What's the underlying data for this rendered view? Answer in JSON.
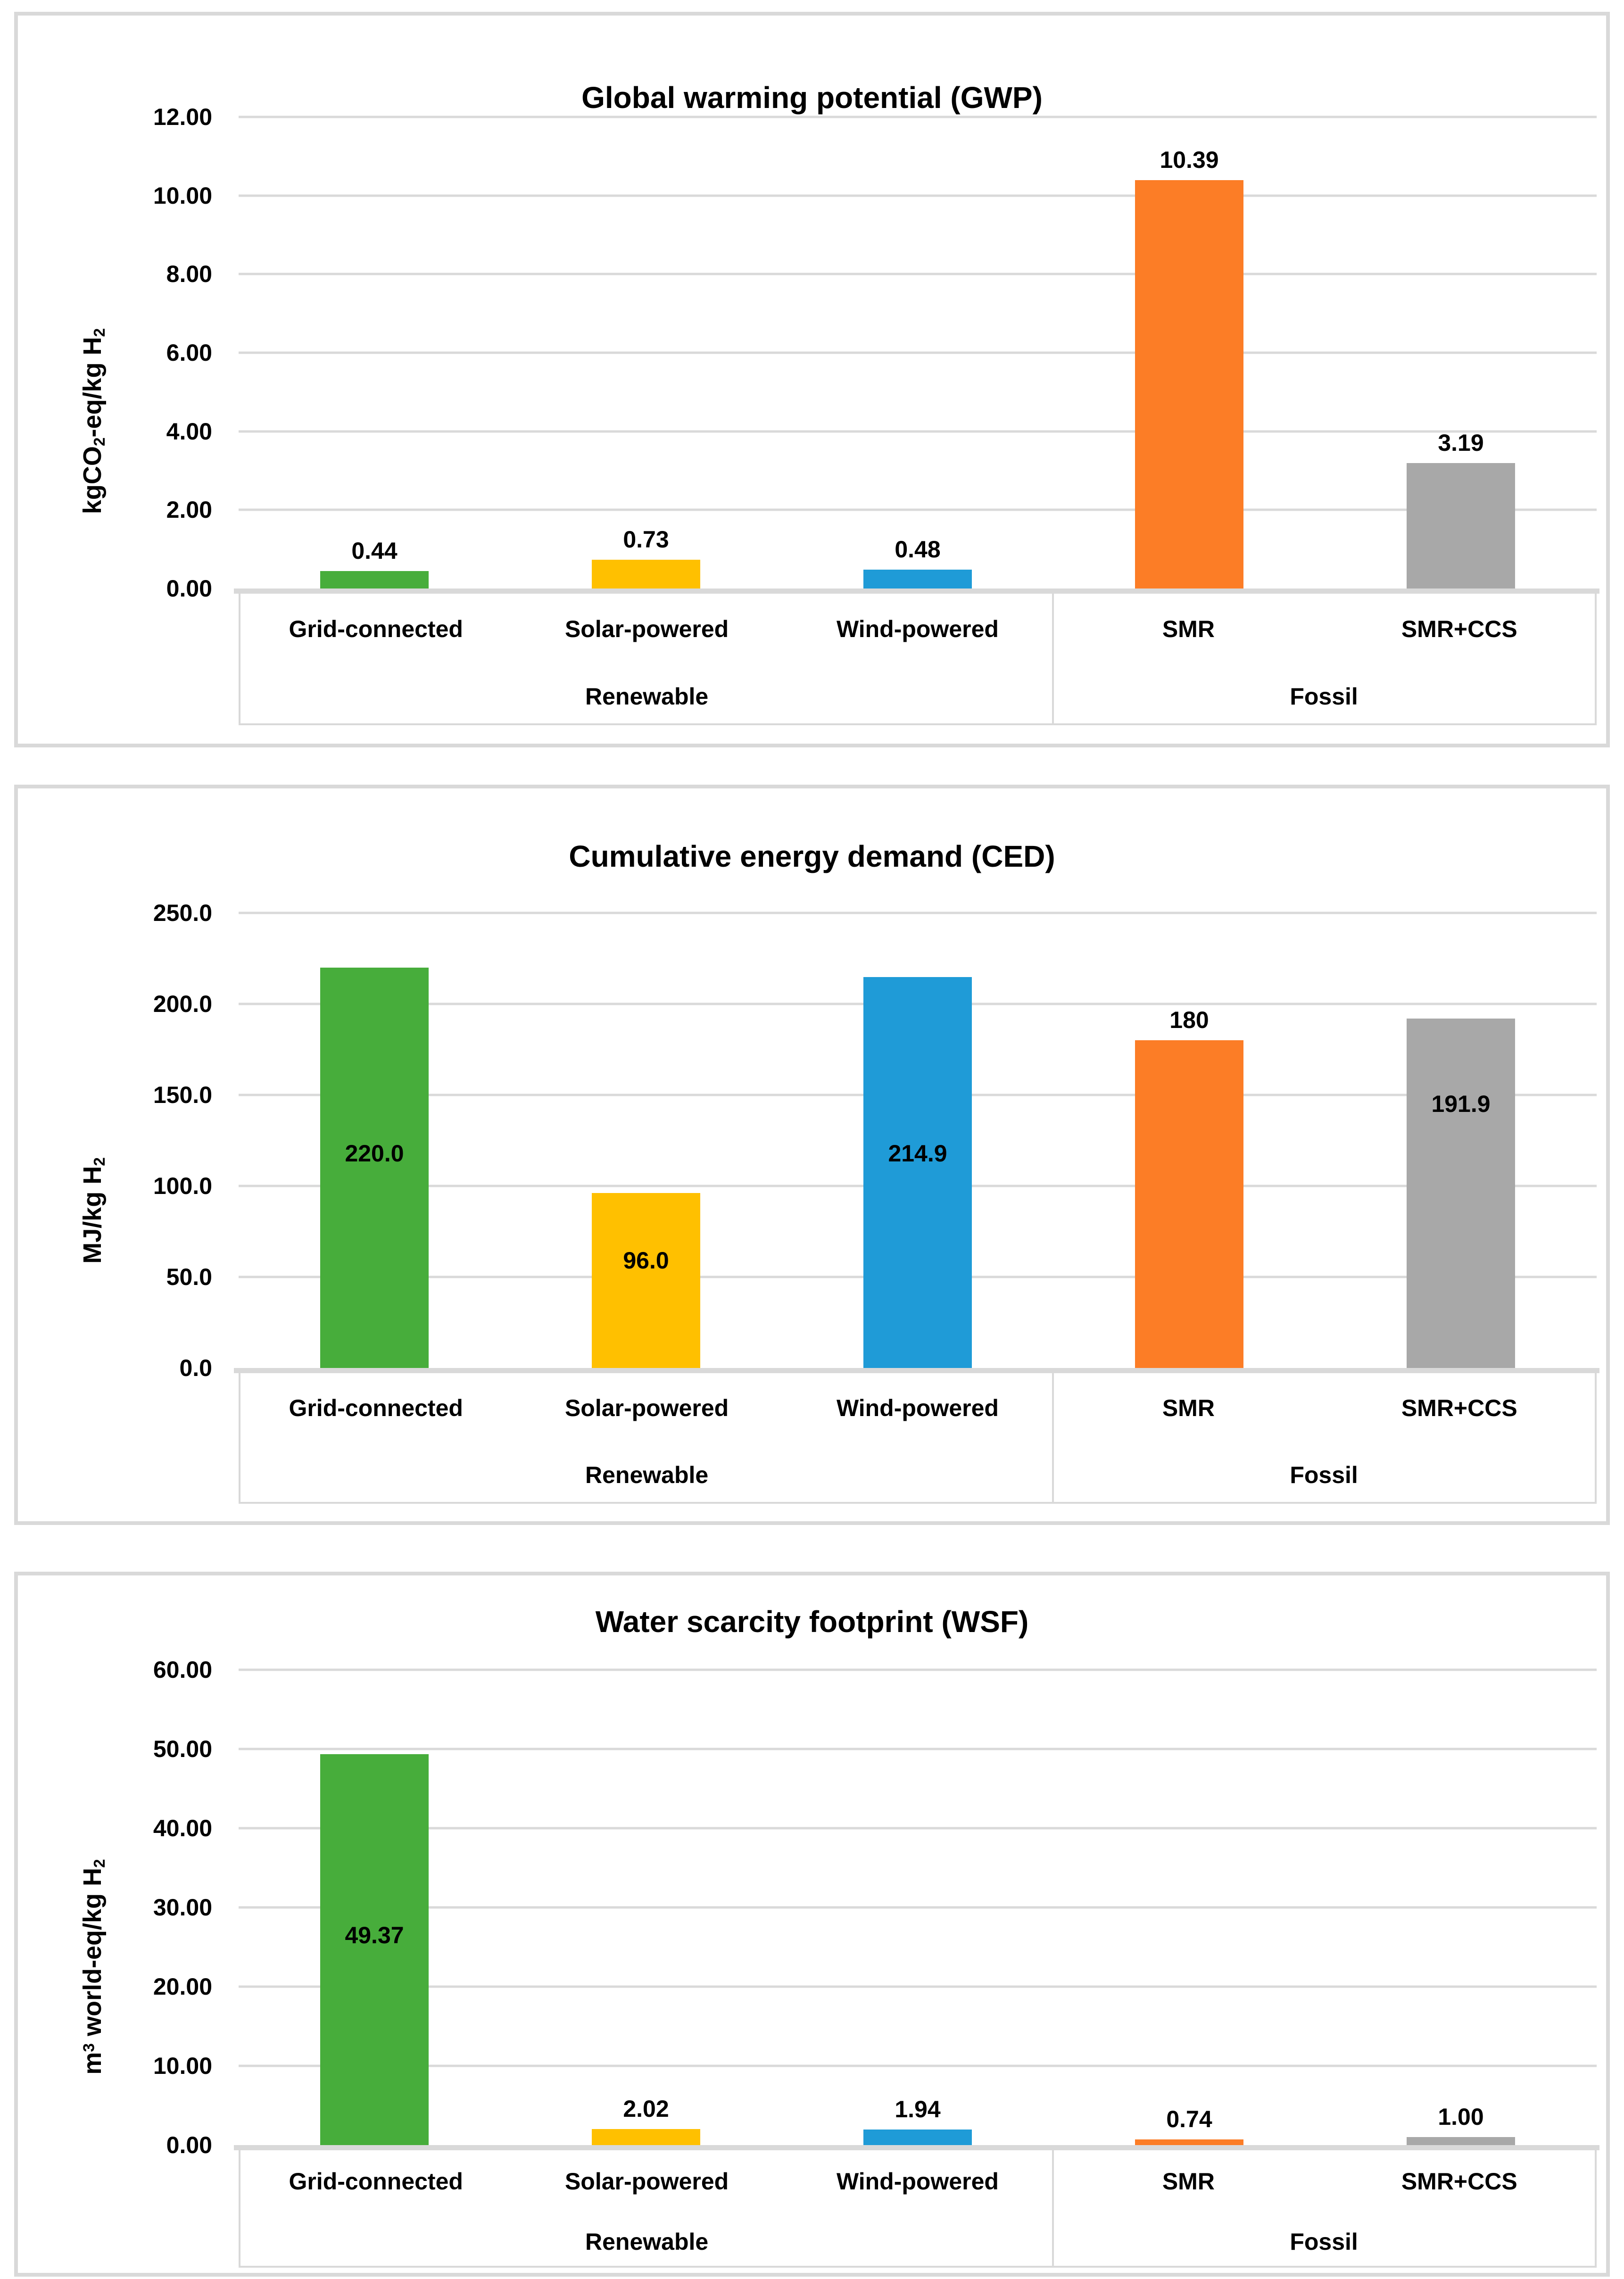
{
  "colors": {
    "green": "#47AD3B",
    "yellow": "#FFC000",
    "blue": "#1F9BD7",
    "orange": "#FC7D26",
    "gray": "#A8A8A8",
    "gridline": "#D9D9D9",
    "axis_line": "#D9D9D9",
    "panel_border": "#D9D9D9",
    "text": "#000000",
    "background": "#FFFFFF"
  },
  "chart_data": [
    {
      "type": "bar",
      "title": "Global warming potential (GWP)",
      "ylabel": "kgCO2-eq/kg H2",
      "ylabel_segments": [
        {
          "t": "kgCO"
        },
        {
          "t": "2",
          "s": "sub"
        },
        {
          "t": "-eq/kg H"
        },
        {
          "t": "2",
          "s": "sub"
        }
      ],
      "xlabel": "",
      "ylim": [
        0,
        12
      ],
      "grid": true,
      "legend": "none",
      "yticks": [
        {
          "value": 0,
          "label": "0.00"
        },
        {
          "value": 2,
          "label": "2.00"
        },
        {
          "value": 4,
          "label": "4.00"
        },
        {
          "value": 6,
          "label": "6.00"
        },
        {
          "value": 8,
          "label": "8.00"
        },
        {
          "value": 10,
          "label": "10.00"
        },
        {
          "value": 12,
          "label": "12.00"
        }
      ],
      "categories": [
        "Grid-connected",
        "Solar-powered",
        "Wind-powered",
        "SMR",
        "SMR+CCS"
      ],
      "groups": [
        {
          "label": "Renewable",
          "span": 3
        },
        {
          "label": "Fossil",
          "span": 2
        }
      ],
      "bars": [
        {
          "category": "Grid-connected",
          "value": 0.44,
          "label": "0.44",
          "color": "green",
          "label_placement": "outside"
        },
        {
          "category": "Solar-powered",
          "value": 0.73,
          "label": "0.73",
          "color": "yellow",
          "label_placement": "outside"
        },
        {
          "category": "Wind-powered",
          "value": 0.48,
          "label": "0.48",
          "color": "blue",
          "label_placement": "outside"
        },
        {
          "category": "SMR",
          "value": 10.39,
          "label": "10.39",
          "color": "orange",
          "label_placement": "outside"
        },
        {
          "category": "SMR+CCS",
          "value": 3.19,
          "label": "3.19",
          "color": "gray",
          "label_placement": "outside"
        }
      ]
    },
    {
      "type": "bar",
      "title": "Cumulative energy demand (CED)",
      "ylabel": "MJ/kg H2",
      "ylabel_segments": [
        {
          "t": "MJ/kg H"
        },
        {
          "t": "2",
          "s": "sub"
        }
      ],
      "xlabel": "",
      "ylim": [
        0,
        250
      ],
      "grid": true,
      "legend": "none",
      "yticks": [
        {
          "value": 0,
          "label": "0.0"
        },
        {
          "value": 50,
          "label": "50.0"
        },
        {
          "value": 100,
          "label": "100.0"
        },
        {
          "value": 150,
          "label": "150.0"
        },
        {
          "value": 200,
          "label": "200.0"
        },
        {
          "value": 250,
          "label": "250.0"
        }
      ],
      "categories": [
        "Grid-connected",
        "Solar-powered",
        "Wind-powered",
        "SMR",
        "SMR+CCS"
      ],
      "groups": [
        {
          "label": "Renewable",
          "span": 3
        },
        {
          "label": "Fossil",
          "span": 2
        }
      ],
      "bars": [
        {
          "category": "Grid-connected",
          "value": 220.0,
          "label": "220.0",
          "color": "green",
          "label_placement": "inside",
          "label_y": 118
        },
        {
          "category": "Solar-powered",
          "value": 96.0,
          "label": "96.0",
          "color": "yellow",
          "label_placement": "inside",
          "label_y": 59
        },
        {
          "category": "Wind-powered",
          "value": 214.9,
          "label": "214.9",
          "color": "blue",
          "label_placement": "inside",
          "label_y": 118
        },
        {
          "category": "SMR",
          "value": 180,
          "label": "180",
          "color": "orange",
          "label_placement": "outside"
        },
        {
          "category": "SMR+CCS",
          "value": 191.9,
          "label": "191.9",
          "color": "gray",
          "label_placement": "inside",
          "label_y": 145
        }
      ]
    },
    {
      "type": "bar",
      "title": "Water scarcity footprint (WSF)",
      "ylabel": "m3 world-eq/kg H2",
      "ylabel_segments": [
        {
          "t": "m"
        },
        {
          "t": "3",
          "s": "sup"
        },
        {
          "t": " world-eq/kg H"
        },
        {
          "t": "2",
          "s": "sub"
        }
      ],
      "xlabel": "",
      "ylim": [
        0,
        60
      ],
      "grid": true,
      "legend": "none",
      "yticks": [
        {
          "value": 0,
          "label": "0.00"
        },
        {
          "value": 10,
          "label": "10.00"
        },
        {
          "value": 20,
          "label": "20.00"
        },
        {
          "value": 30,
          "label": "30.00"
        },
        {
          "value": 40,
          "label": "40.00"
        },
        {
          "value": 50,
          "label": "50.00"
        },
        {
          "value": 60,
          "label": "60.00"
        }
      ],
      "categories": [
        "Grid-connected",
        "Solar-powered",
        "Wind-powered",
        "SMR",
        "SMR+CCS"
      ],
      "groups": [
        {
          "label": "Renewable",
          "span": 3
        },
        {
          "label": "Fossil",
          "span": 2
        }
      ],
      "bars": [
        {
          "category": "Grid-connected",
          "value": 49.37,
          "label": "49.37",
          "color": "green",
          "label_placement": "inside",
          "label_y": 26.5
        },
        {
          "category": "Solar-powered",
          "value": 2.02,
          "label": "2.02",
          "color": "yellow",
          "label_placement": "outside"
        },
        {
          "category": "Wind-powered",
          "value": 1.94,
          "label": "1.94",
          "color": "blue",
          "label_placement": "outside"
        },
        {
          "category": "SMR",
          "value": 0.74,
          "label": "0.74",
          "color": "orange",
          "label_placement": "outside"
        },
        {
          "category": "SMR+CCS",
          "value": 1.0,
          "label": "1.00",
          "color": "gray",
          "label_placement": "outside"
        }
      ]
    }
  ]
}
